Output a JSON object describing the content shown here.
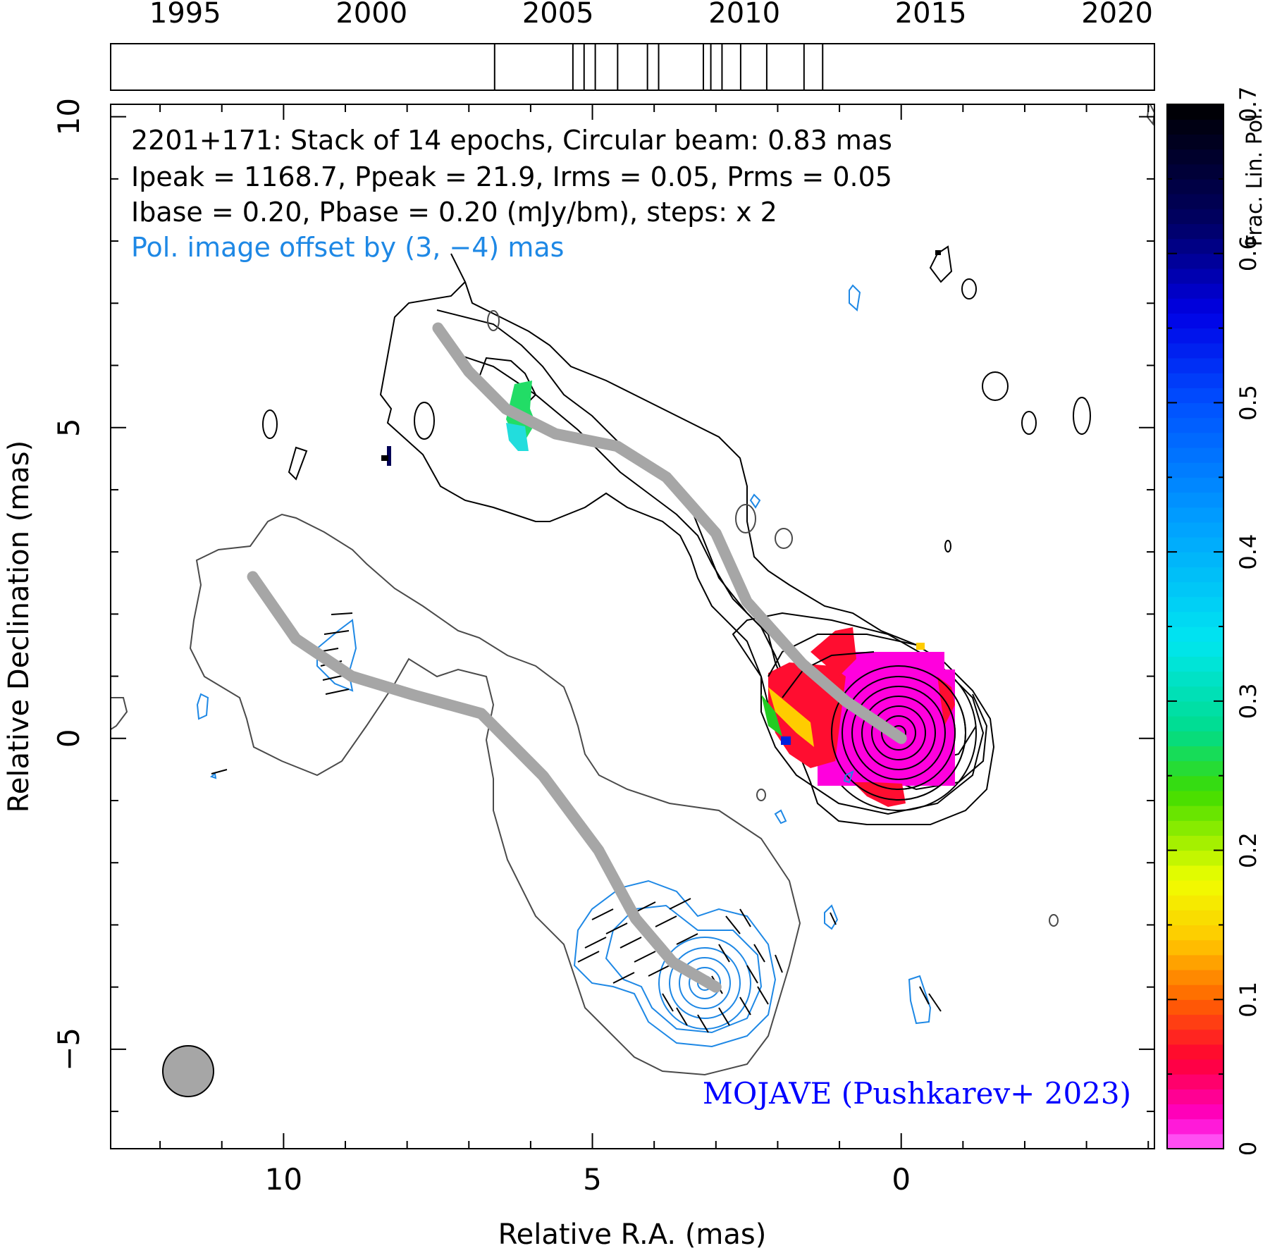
{
  "chart_data": {
    "type": "contour",
    "source": "2201+171",
    "header": {
      "line1": "2201+171: Stack of 14 epochs, Circular beam: 0.83 mas",
      "line2": "Ipeak = 1168.7, Ppeak = 21.9, Irms = 0.05, Prms = 0.05",
      "line3": "Ibase = 0.20, Pbase = 0.20 (mJy/bm), steps: x 2",
      "line4": "Pol. image offset by (3, −4) mas"
    },
    "credit": "MOJAVE (Pushkarev+ 2023)",
    "xlabel": "Relative R.A. (mas)",
    "ylabel": "Relative Declination (mas)",
    "colorbar_label": "Frac. Lin. Pol.",
    "xlim": [
      12.8,
      -4.1
    ],
    "ylim": [
      -6.6,
      10.2
    ],
    "x_ticks": [
      10,
      5,
      0
    ],
    "x_tick_labels": [
      "10",
      "5",
      "0"
    ],
    "y_ticks": [
      10,
      5,
      0,
      -5
    ],
    "y_tick_labels": [
      "10",
      "5",
      "0",
      "−5"
    ],
    "colorbar_range": [
      0,
      0.7
    ],
    "colorbar_ticks": [
      0,
      0.1,
      0.2,
      0.3,
      0.4,
      0.5,
      0.6,
      0.7
    ],
    "colorbar_tick_labels": [
      "0",
      "0.1",
      "0.2",
      "0.3",
      "0.4",
      "0.5",
      "0.6",
      "0.7"
    ],
    "epoch_axis": {
      "range": [
        1993.0,
        2021.0
      ],
      "ticks": [
        1995,
        2000,
        2005,
        2010,
        2015,
        2020
      ],
      "tick_labels": [
        "1995",
        "2000",
        "2005",
        "2010",
        "2015",
        "2020"
      ],
      "epochs": [
        2003.3,
        2005.4,
        2005.7,
        2006.0,
        2006.6,
        2007.4,
        2007.7,
        2008.9,
        2009.1,
        2009.4,
        2009.9,
        2010.6,
        2011.6,
        2012.1
      ]
    },
    "beam_mas": 0.83,
    "ridge_line_stokes_I": [
      [
        7.5,
        6.6
      ],
      [
        7.0,
        5.9
      ],
      [
        6.4,
        5.3
      ],
      [
        5.6,
        4.9
      ],
      [
        4.6,
        4.7
      ],
      [
        3.8,
        4.2
      ],
      [
        3.0,
        3.3
      ],
      [
        2.5,
        2.2
      ],
      [
        1.6,
        1.2
      ],
      [
        0.9,
        0.6
      ],
      [
        0,
        0
      ]
    ],
    "ridge_line_pol": [
      [
        10.5,
        2.6
      ],
      [
        9.8,
        1.6
      ],
      [
        8.9,
        1.0
      ],
      [
        7.9,
        0.7
      ],
      [
        6.8,
        0.4
      ],
      [
        5.8,
        -0.6
      ],
      [
        4.9,
        -1.8
      ],
      [
        4.3,
        -2.9
      ],
      [
        3.7,
        -3.6
      ],
      [
        3.0,
        -4.0
      ]
    ],
    "colors": {
      "stokes_I_contours": "#000000",
      "pol_contours": "#1e88e5",
      "ridge_line": "#a6a6a6",
      "lowest_I_contour": "#4a4a4a",
      "header_offset_text": "#1e88e5",
      "credit_text": "#0000ff",
      "beam_fill": "#a6a6a6"
    }
  }
}
